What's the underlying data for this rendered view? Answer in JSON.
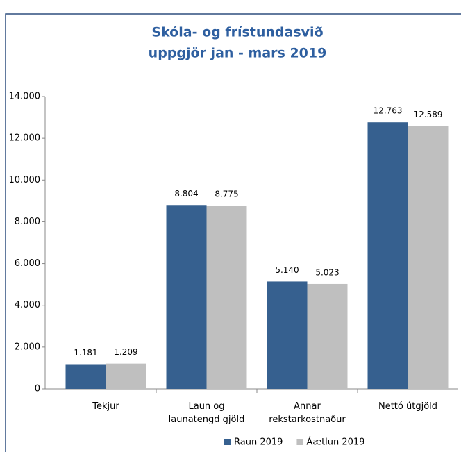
{
  "chart_data": {
    "type": "bar",
    "title": "Skóla- og frístundasvið",
    "subtitle": "uppgjör jan - mars  2019",
    "categories": [
      "Tekjur",
      "Laun og\nlaunatengd gjöld",
      "Annar\nrekstarkostnaður",
      "Nettó útgjöld"
    ],
    "series": [
      {
        "name": "Raun 2019",
        "color": "#36608f",
        "values": [
          1181,
          8804,
          5140,
          12763
        ],
        "value_labels": [
          "1.181",
          "8.804",
          "5.140",
          "12.763"
        ]
      },
      {
        "name": "Áætlun 2019",
        "color": "#bfbfbf",
        "values": [
          1209,
          8775,
          5023,
          12589
        ],
        "value_labels": [
          "1.209",
          "8.775",
          "5.023",
          "12.589"
        ]
      }
    ],
    "ylim": [
      0,
      14000
    ],
    "yticks": [
      0,
      {
        "value": 2000,
        "label": "2.000"
      },
      {
        "value": 4000,
        "label": "4.000"
      },
      {
        "value": 6000,
        "label": "6.000"
      },
      {
        "value": 8000,
        "label": "8.000"
      },
      {
        "value": 10000,
        "label": "10.000"
      },
      {
        "value": 12000,
        "label": "12.000"
      },
      {
        "value": 14000,
        "label": "14.000"
      }
    ],
    "legend": "bottom"
  }
}
